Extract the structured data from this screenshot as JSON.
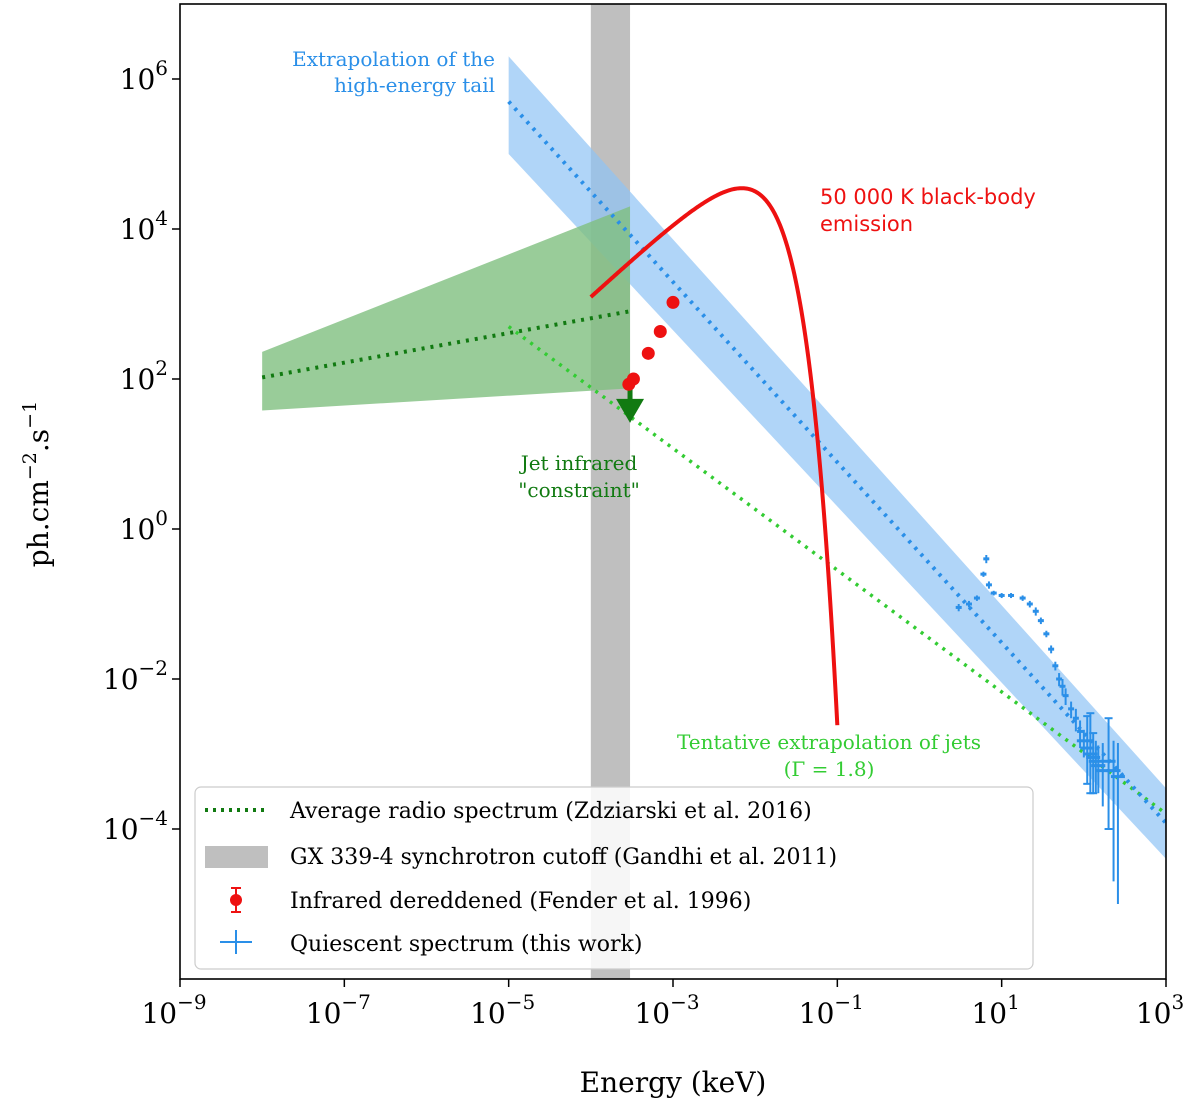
{
  "chart_data": {
    "type": "line",
    "scale": {
      "x": "log",
      "y": "log"
    },
    "xlim": [
      1e-09,
      1000
    ],
    "ylim": [
      1e-06,
      10000000.0
    ],
    "xlabel": "Energy (keV)",
    "ylabel": "ph.cm−2.s−1",
    "x_ticks": [
      {
        "exp": "−9",
        "value": 1e-09
      },
      {
        "exp": "−7",
        "value": 1e-07
      },
      {
        "exp": "−5",
        "value": 1e-05
      },
      {
        "exp": "−3",
        "value": 0.001
      },
      {
        "exp": "−1",
        "value": 0.1
      },
      {
        "exp": "1",
        "value": 10
      },
      {
        "exp": "3",
        "value": 1000
      }
    ],
    "y_ticks": [
      {
        "exp": "−4",
        "value": 0.0001
      },
      {
        "exp": "−2",
        "value": 0.01
      },
      {
        "exp": "0",
        "value": 1
      },
      {
        "exp": "2",
        "value": 100
      },
      {
        "exp": "4",
        "value": 10000
      },
      {
        "exp": "6",
        "value": 1000000
      }
    ],
    "tick_base": "10",
    "colors": {
      "radio": "#117a11",
      "cutoff": "#bfbfbf",
      "infrared": "#ee1111",
      "quiescent": "#2a8fe8",
      "band": "#8ec3f5",
      "jet_band": "#7fbf7f",
      "jet_extrap": "#33cc33",
      "tail_line": "#2a8fe8"
    },
    "series": [
      {
        "name": "Average radio spectrum (Zdziarski et al. 2016)",
        "style": "dotted",
        "x": [
          1e-08,
          0.0003
        ],
        "y": [
          105,
          800
        ]
      },
      {
        "name": "GX 339-4 synchrotron cutoff (Gandhi et al. 2011)",
        "style": "vspan",
        "x_range": [
          0.0001,
          0.0003
        ]
      },
      {
        "name": "Infrared dereddened (Fender et al. 1996)",
        "style": "points",
        "x": [
          0.00029,
          0.00033,
          0.0005,
          0.0007,
          0.001
        ],
        "y": [
          85,
          100,
          220,
          430,
          1050
        ]
      },
      {
        "name": "Quiescent spectrum (this work)",
        "style": "errorbars",
        "x": [
          3,
          4,
          5,
          6,
          6.5,
          7,
          8,
          10,
          13,
          18,
          22,
          26,
          30,
          35,
          40,
          45,
          50,
          55,
          60,
          70,
          80,
          90,
          100,
          110,
          120,
          130,
          140,
          150,
          170,
          200,
          230,
          260
        ],
        "y": [
          0.09,
          0.1,
          0.12,
          0.25,
          0.4,
          0.18,
          0.14,
          0.13,
          0.13,
          0.12,
          0.1,
          0.08,
          0.06,
          0.04,
          0.025,
          0.015,
          0.01,
          0.008,
          0.006,
          0.004,
          0.003,
          0.002,
          0.0015,
          0.0012,
          0.001,
          0.0009,
          0.0008,
          0.0007,
          0.0006,
          0.0008,
          0.0006,
          0.0005
        ],
        "yerr_lo": [
          0.01,
          0.01,
          0.01,
          0.02,
          0.05,
          0.02,
          0.01,
          0.01,
          0.01,
          0.01,
          0.01,
          0.01,
          0.006,
          0.004,
          0.003,
          0.002,
          0.002,
          0.002,
          0.0015,
          0.001,
          0.001,
          0.0008,
          0.0006,
          0.0008,
          0.0007,
          0.0006,
          0.0005,
          0.0004,
          0.0004,
          0.0007,
          0.00058,
          0.00049
        ],
        "yerr_hi": [
          0.01,
          0.01,
          0.01,
          0.02,
          0.05,
          0.02,
          0.01,
          0.01,
          0.01,
          0.01,
          0.01,
          0.01,
          0.006,
          0.004,
          0.003,
          0.002,
          0.002,
          0.002,
          0.0015,
          0.001,
          0.001,
          0.0008,
          0.0006,
          0.002,
          0.0025,
          0.001,
          0.0007,
          0.0006,
          0.0008,
          0.0022,
          0.0009,
          0.0009
        ]
      },
      {
        "name": "50 000 K black-body",
        "style": "solid",
        "temperature_K": 50000,
        "x_range": [
          0.0001,
          0.1
        ],
        "peak": [
          0.012,
          35000
        ]
      },
      {
        "name": "Extrapolation of the high-energy tail",
        "style": "dotted",
        "x": [
          1e-05,
          1000
        ],
        "y": [
          500000,
          0.00012
        ],
        "band_lo": [
          100000,
          4e-05
        ],
        "band_hi": [
          2000000,
          0.00035
        ]
      },
      {
        "name": "Jet band",
        "style": "area",
        "x": [
          1e-08,
          0.0003
        ],
        "lo": [
          38,
          75
        ],
        "hi": [
          230,
          20000
        ]
      },
      {
        "name": "Tentative extrapolation of jets",
        "style": "dotted",
        "x": [
          1e-05,
          1000
        ],
        "y": [
          500,
          0.00016
        ]
      },
      {
        "name": "Jet infrared constraint",
        "style": "upper-limit-arrow",
        "x": 0.0003,
        "y": 40
      }
    ],
    "annotations": {
      "tail_line1": "Extrapolation of the",
      "tail_line2": "high-energy tail",
      "bb_line1": "50 000 K black-body",
      "bb_line2": "emission",
      "jet_ir_line1": "Jet infrared",
      "jet_ir_line2": "\"constraint\"",
      "jets_line1": "Tentative extrapolation of jets",
      "jets_line2": "(Γ = 1.8)"
    },
    "legend": {
      "position": "lower-left",
      "entries": [
        "Average radio spectrum (Zdziarski et al. 2016)",
        "GX 339-4 synchrotron cutoff (Gandhi et al. 2011)",
        "Infrared dereddened (Fender et al. 1996)",
        "Quiescent spectrum (this work)"
      ]
    }
  }
}
